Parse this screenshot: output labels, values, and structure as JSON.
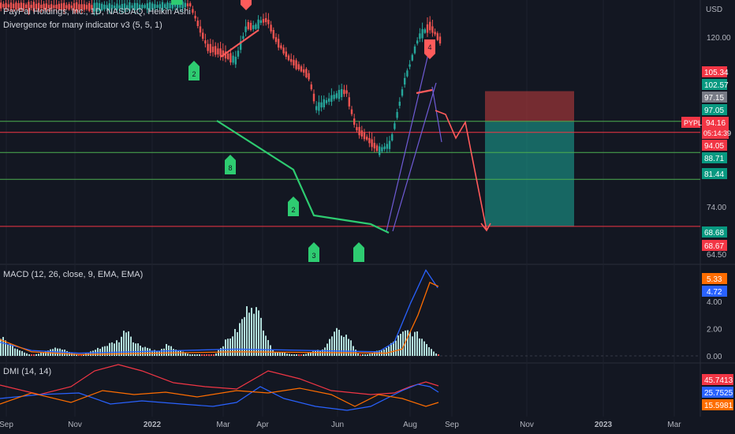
{
  "header": {
    "symbol_line": "PayPal Holdings, Inc., 1D, NASDAQ, Heikin Ashi",
    "indicator_line": "Divergence for many indicator v3 (5, 5, 1)",
    "currency": "USD"
  },
  "macd_legend": "MACD (12, 26, close, 9, EMA, EMA)",
  "dmi_legend": "DMI (14, 14)",
  "colors": {
    "background": "#131722",
    "up": "#26a69a",
    "down": "#ef5350",
    "green_level": "#4caf50",
    "red_level": "#f23645",
    "divergence_bull": "#2ecc71",
    "divergence_bear": "#ff5b5b",
    "channel": "#6f5bd6",
    "macd_line": "#2962ff",
    "signal_line": "#ff6d00",
    "dmi_plus": "#2962ff",
    "dmi_minus": "#ff6d00",
    "adx": "#f23645"
  },
  "chart_data": [
    {
      "type": "candlestick",
      "title": "PayPal Holdings, Inc., 1D, NASDAQ, Heikin Ashi",
      "ylim": [
        64,
        128
      ],
      "price_ticks": [
        "120.00",
        "74.00",
        "64.50"
      ],
      "price_labels": [
        {
          "value": "105.34",
          "kind": "red"
        },
        {
          "value": "102.57",
          "kind": "green"
        },
        {
          "value": "97.15",
          "kind": "gray"
        },
        {
          "value": "97.05",
          "kind": "green"
        },
        {
          "value": "94.16",
          "kind": "red"
        },
        {
          "value": "94.05",
          "kind": "red"
        },
        {
          "value": "88.71",
          "kind": "green"
        },
        {
          "value": "81.44",
          "kind": "green"
        },
        {
          "value": "68.68",
          "kind": "green"
        },
        {
          "value": "68.67",
          "kind": "red"
        }
      ],
      "current": {
        "symbol": "PYPL",
        "price": "94.16",
        "countdown": "05:14:39"
      },
      "horizontal_levels": [
        {
          "value": 97.15,
          "color": "green"
        },
        {
          "value": 94.16,
          "color": "red"
        },
        {
          "value": 88.71,
          "color": "green"
        },
        {
          "value": 81.44,
          "color": "green"
        },
        {
          "value": 68.68,
          "color": "red"
        }
      ],
      "position": {
        "entry": 97.05,
        "stop": 105.34,
        "target": 68.68
      },
      "signal_markers": [
        {
          "text": "2",
          "type": "bull"
        },
        {
          "text": "8",
          "type": "bull"
        },
        {
          "text": "2",
          "type": "bull"
        },
        {
          "text": "3",
          "type": "bull"
        },
        {
          "text": "",
          "type": "bull"
        },
        {
          "text": "4",
          "type": "bear"
        },
        {
          "text": "",
          "type": "bear"
        },
        {
          "text": "",
          "type": "bull"
        }
      ],
      "x_labels": [
        "Sep",
        "Nov",
        "2022",
        "Mar",
        "Apr",
        "Jun",
        "Aug",
        "Sep",
        "Nov",
        "2023",
        "Mar"
      ]
    },
    {
      "type": "bar",
      "title": "MACD (12, 26, close, 9, EMA, EMA)",
      "ticks": [
        "4.00",
        "2.00",
        "0.00"
      ],
      "value_labels": [
        {
          "value": "5.33",
          "kind": "orange"
        },
        {
          "value": "4.72",
          "kind": "blue"
        }
      ],
      "histogram_note": "histogram plus MACD and signal lines"
    },
    {
      "type": "line",
      "title": "DMI (14, 14)",
      "value_labels": [
        {
          "value": "45.7413",
          "kind": "red"
        },
        {
          "value": "25.7525",
          "kind": "blue"
        },
        {
          "value": "15.5981",
          "kind": "orange"
        }
      ]
    }
  ]
}
